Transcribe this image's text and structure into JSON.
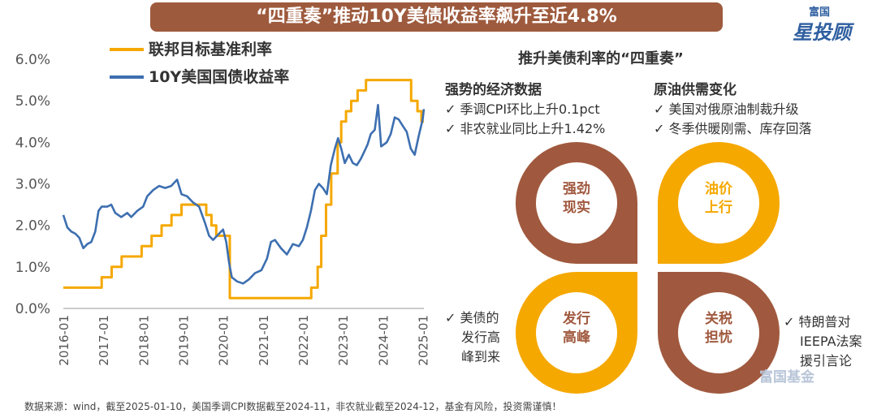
{
  "title": "“四重奏”推动10Y美债收益率飙升至近4.8%",
  "logo": {
    "small": "富国",
    "big": "星投顾"
  },
  "chart_data": {
    "type": "line",
    "ylim": [
      0,
      6
    ],
    "yticks": [
      "0.0%",
      "1.0%",
      "2.0%",
      "3.0%",
      "4.0%",
      "5.0%",
      "6.0%"
    ],
    "xticks": [
      "2016-01",
      "2017-01",
      "2018-01",
      "2019-01",
      "2020-01",
      "2021-01",
      "2022-01",
      "2023-01",
      "2024-01",
      "2025-01"
    ],
    "series": [
      {
        "name": "联邦目标基准利率",
        "color": "#f5a800",
        "step": true,
        "x": [
          2016.0,
          2016.96,
          2017.21,
          2017.46,
          2017.96,
          2018.21,
          2018.46,
          2018.71,
          2018.96,
          2019.58,
          2019.71,
          2019.83,
          2020.17,
          2022.21,
          2022.37,
          2022.46,
          2022.58,
          2022.71,
          2022.87,
          2022.96,
          2023.08,
          2023.21,
          2023.37,
          2023.58,
          2024.71,
          2024.87,
          2024.97,
          2025.03
        ],
        "values": [
          0.5,
          0.75,
          1.0,
          1.25,
          1.5,
          1.75,
          2.0,
          2.25,
          2.5,
          2.25,
          2.0,
          1.75,
          0.25,
          0.5,
          1.0,
          1.75,
          2.5,
          3.25,
          4.0,
          4.5,
          4.75,
          5.0,
          5.25,
          5.5,
          5.0,
          4.75,
          4.5,
          4.5
        ]
      },
      {
        "name": "10Y美国国债收益率",
        "color": "#3d6fb0",
        "step": false,
        "x": [
          2016.0,
          2016.1,
          2016.2,
          2016.3,
          2016.4,
          2016.5,
          2016.6,
          2016.7,
          2016.8,
          2016.88,
          2016.96,
          2017.1,
          2017.2,
          2017.3,
          2017.45,
          2017.6,
          2017.7,
          2017.85,
          2018.0,
          2018.1,
          2018.25,
          2018.4,
          2018.55,
          2018.7,
          2018.85,
          2018.96,
          2019.1,
          2019.25,
          2019.4,
          2019.55,
          2019.65,
          2019.75,
          2019.9,
          2020.0,
          2020.08,
          2020.15,
          2020.22,
          2020.35,
          2020.5,
          2020.65,
          2020.8,
          2020.96,
          2021.1,
          2021.2,
          2021.3,
          2021.45,
          2021.6,
          2021.75,
          2021.9,
          2022.0,
          2022.1,
          2022.2,
          2022.3,
          2022.4,
          2022.5,
          2022.6,
          2022.7,
          2022.8,
          2022.88,
          2022.96,
          2023.05,
          2023.15,
          2023.25,
          2023.35,
          2023.45,
          2023.55,
          2023.62,
          2023.7,
          2023.8,
          2023.88,
          2023.96,
          2024.1,
          2024.2,
          2024.3,
          2024.4,
          2024.5,
          2024.6,
          2024.7,
          2024.8,
          2024.9,
          2025.0,
          2025.03
        ],
        "values": [
          2.25,
          1.95,
          1.85,
          1.8,
          1.7,
          1.45,
          1.55,
          1.6,
          1.85,
          2.35,
          2.45,
          2.45,
          2.5,
          2.3,
          2.2,
          2.3,
          2.2,
          2.35,
          2.45,
          2.7,
          2.85,
          2.95,
          2.9,
          2.95,
          3.1,
          2.75,
          2.7,
          2.55,
          2.45,
          2.05,
          1.75,
          1.65,
          1.8,
          1.9,
          1.6,
          1.1,
          0.75,
          0.65,
          0.6,
          0.7,
          0.85,
          0.92,
          1.2,
          1.6,
          1.65,
          1.45,
          1.3,
          1.55,
          1.5,
          1.65,
          1.95,
          2.35,
          2.85,
          3.0,
          2.9,
          2.75,
          3.45,
          3.85,
          4.1,
          3.85,
          3.5,
          3.7,
          3.5,
          3.45,
          3.6,
          3.8,
          3.95,
          4.2,
          4.3,
          4.9,
          3.9,
          4.0,
          4.2,
          4.6,
          4.55,
          4.4,
          4.25,
          3.85,
          3.7,
          4.15,
          4.55,
          4.8
        ]
      }
    ]
  },
  "right": {
    "title": "推升美债利率的“四重奏”",
    "blk1": {
      "head": "强势的经济数据",
      "items": [
        "✓ 季调CPI环比上升0.1pct",
        "✓ 非农就业同比上升1.42%"
      ]
    },
    "blk2": {
      "head": "原油供需变化",
      "items": [
        "✓ 美国对俄原油制裁升级",
        "✓ 冬季供暖刚需、库存回落"
      ]
    },
    "q1": "强劲现实",
    "q2": "油价上行",
    "q3": "发行高峰",
    "q4": "关税担忧",
    "left_note": [
      "✓ 美债的",
      "发行高",
      "峰到来"
    ],
    "right_note": [
      "✓ 特朗普对",
      "IEEPA法案",
      "援引言论"
    ],
    "colors": {
      "brown": "#a0593e",
      "orange": "#f5a800"
    }
  },
  "source": "数据来源：wind，截至2025-01-10，美国季调CPI数据截至2024-11，非农就业截至2024-12，基金有风险，投资需谨慎！",
  "watermark": "富国基金"
}
